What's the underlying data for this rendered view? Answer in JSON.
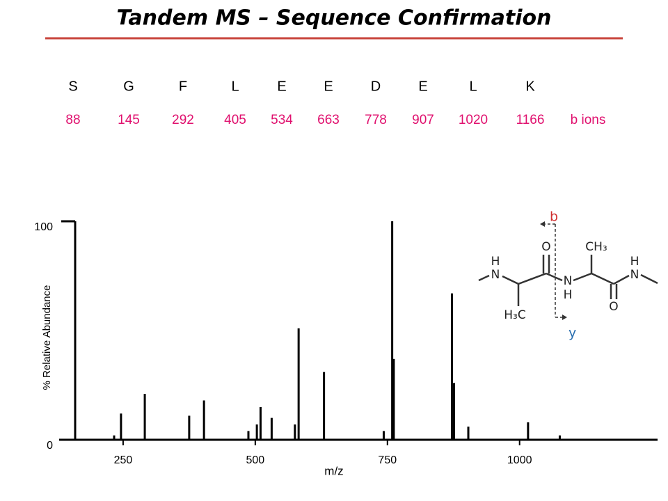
{
  "chart_data": {
    "type": "bar",
    "title": "Tandem MS – Sequence Confirmation",
    "xlabel": "m/z",
    "ylabel": "% Relative Abundance",
    "x": [
      233,
      246,
      291,
      375,
      403,
      487,
      503,
      510,
      531,
      575,
      582,
      630,
      743,
      759,
      762,
      872,
      876,
      903,
      1016,
      1076
    ],
    "values": [
      2,
      12,
      21,
      11,
      18,
      4,
      7,
      15,
      10,
      7,
      51,
      31,
      4,
      100,
      37,
      67,
      26,
      6,
      8,
      2
    ],
    "color": "#000000",
    "xlim": [
      129,
      1261
    ],
    "ylim": [
      0,
      100
    ],
    "xticks": [
      250,
      500,
      750,
      1000
    ],
    "yticks": [
      0,
      100
    ],
    "grid": false
  },
  "sequence": {
    "residues": [
      "S",
      "G",
      "F",
      "L",
      "E",
      "E",
      "D",
      "E",
      "L",
      "K"
    ],
    "b_ions": [
      88,
      145,
      292,
      405,
      534,
      663,
      778,
      907,
      1020,
      1166
    ],
    "b_ions_label": "b ions"
  },
  "structure": {
    "labels": [
      "b",
      "y",
      "H",
      "N",
      "O",
      "N",
      "H",
      "CH₃",
      "H₃C",
      "O",
      "H",
      "N"
    ]
  }
}
